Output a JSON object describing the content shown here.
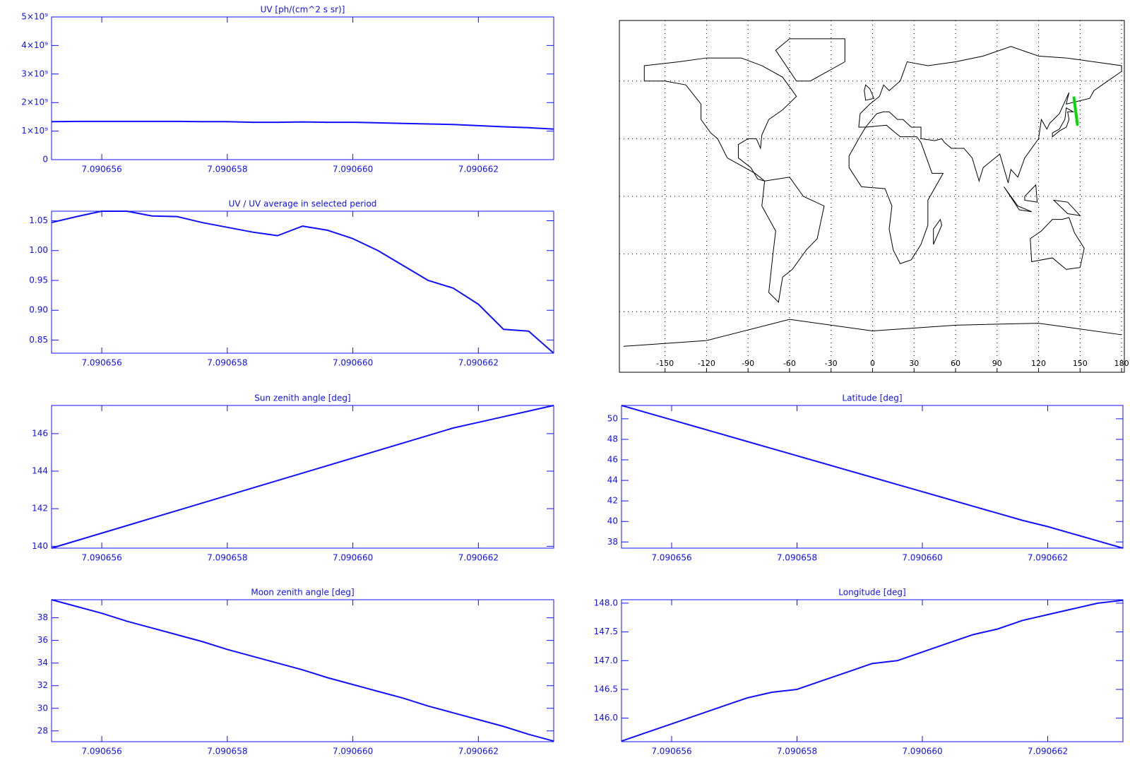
{
  "chart_data": [
    {
      "type": "line",
      "title": "UV [ph/(cm^2 s sr)]",
      "color": "#1010ff",
      "x": [
        7.0906552,
        7.0906556,
        7.090656,
        7.0906564,
        7.0906568,
        7.0906572,
        7.0906576,
        7.090658,
        7.0906584,
        7.0906588,
        7.0906592,
        7.0906596,
        7.09066,
        7.0906604,
        7.0906608,
        7.0906612,
        7.0906616,
        7.090662,
        7.0906624,
        7.0906628,
        7.0906632
      ],
      "values": [
        1330000000,
        1340000000,
        1340000000,
        1340000000,
        1340000000,
        1340000000,
        1330000000,
        1330000000,
        1310000000,
        1310000000,
        1320000000,
        1310000000,
        1310000000,
        1290000000,
        1270000000,
        1250000000,
        1230000000,
        1190000000,
        1150000000,
        1120000000,
        1070000000
      ],
      "xlim": [
        7.0906552,
        7.0906632
      ],
      "ylim": [
        0,
        5000000000
      ],
      "xticks": [
        7.090656,
        7.090658,
        {
          "value": 7.09066,
          "label": "7.090660"
        },
        7.090662
      ],
      "yticks": [
        0,
        {
          "value": 1000000000,
          "label": "1×10⁹"
        },
        {
          "value": 2000000000,
          "label": "2×10⁹"
        },
        {
          "value": 3000000000,
          "label": "3×10⁹"
        },
        {
          "value": 4000000000,
          "label": "4×10⁹"
        },
        {
          "value": 5000000000,
          "label": "5×10⁹"
        }
      ]
    },
    {
      "type": "line",
      "title": "UV / UV average in selected period",
      "color": "#1010ff",
      "x": [
        7.0906552,
        7.0906556,
        7.090656,
        7.0906564,
        7.0906568,
        7.0906572,
        7.0906576,
        7.090658,
        7.0906584,
        7.0906588,
        7.0906592,
        7.0906596,
        7.09066,
        7.0906604,
        7.0906608,
        7.0906612,
        7.0906616,
        7.090662,
        7.0906624,
        7.0906628,
        7.0906632
      ],
      "values": [
        1.047,
        1.057,
        1.066,
        1.066,
        1.058,
        1.057,
        1.047,
        1.039,
        1.031,
        1.025,
        1.041,
        1.034,
        1.02,
        1.0,
        0.975,
        0.95,
        0.937,
        0.91,
        0.868,
        0.865,
        0.828
      ],
      "xlim": [
        7.0906552,
        7.0906632
      ],
      "ylim": [
        0.828,
        1.066
      ],
      "xticks": [
        7.090656,
        7.090658,
        {
          "value": 7.09066,
          "label": "7.090660"
        },
        7.090662
      ],
      "yticks": [
        0.85,
        {
          "value": 0.9,
          "label": "0.90"
        },
        0.95,
        {
          "value": 1,
          "label": "1.00"
        },
        1.05
      ]
    },
    {
      "type": "line",
      "title": "Sun zenith angle [deg]",
      "color": "#1010ff",
      "x": [
        7.0906552,
        7.0906556,
        7.090656,
        7.0906564,
        7.0906568,
        7.0906572,
        7.0906576,
        7.090658,
        7.0906584,
        7.0906588,
        7.0906592,
        7.0906596,
        7.09066,
        7.0906604,
        7.0906608,
        7.0906612,
        7.0906616,
        7.090662,
        7.0906624,
        7.0906628,
        7.0906632
      ],
      "values": [
        139.9,
        140.3,
        140.7,
        141.1,
        141.5,
        141.9,
        142.3,
        142.7,
        143.1,
        143.5,
        143.9,
        144.3,
        144.7,
        145.1,
        145.5,
        145.9,
        146.3,
        146.6,
        146.9,
        147.2,
        147.5
      ],
      "xlim": [
        7.0906552,
        7.0906632
      ],
      "ylim": [
        139.9,
        147.5
      ],
      "xticks": [
        7.090656,
        7.090658,
        {
          "value": 7.09066,
          "label": "7.090660"
        },
        7.090662
      ],
      "yticks": [
        140,
        142,
        144,
        146
      ]
    },
    {
      "type": "line",
      "title": "Latitude [deg]",
      "color": "#1010ff",
      "x": [
        7.0906552,
        7.0906556,
        7.090656,
        7.0906564,
        7.0906568,
        7.0906572,
        7.0906576,
        7.090658,
        7.0906584,
        7.0906588,
        7.0906592,
        7.0906596,
        7.09066,
        7.0906604,
        7.0906608,
        7.0906612,
        7.0906616,
        7.090662,
        7.0906624,
        7.0906628,
        7.0906632
      ],
      "values": [
        51.3,
        50.6,
        49.9,
        49.2,
        48.5,
        47.8,
        47.1,
        46.4,
        45.7,
        45.0,
        44.3,
        43.6,
        42.9,
        42.2,
        41.5,
        40.8,
        40.1,
        39.5,
        38.8,
        38.1,
        37.4
      ],
      "xlim": [
        7.0906552,
        7.0906632
      ],
      "ylim": [
        37.4,
        51.3
      ],
      "xticks": [
        7.090656,
        7.090658,
        {
          "value": 7.09066,
          "label": "7.090660"
        },
        7.090662
      ],
      "yticks": [
        38,
        40,
        42,
        44,
        46,
        48,
        50
      ]
    },
    {
      "type": "line",
      "title": "Moon zenith angle [deg]",
      "color": "#1010ff",
      "x": [
        7.0906552,
        7.0906556,
        7.090656,
        7.0906564,
        7.0906568,
        7.0906572,
        7.0906576,
        7.090658,
        7.0906584,
        7.0906588,
        7.0906592,
        7.0906596,
        7.09066,
        7.0906604,
        7.0906608,
        7.0906612,
        7.0906616,
        7.090662,
        7.0906624,
        7.0906628,
        7.0906632
      ],
      "values": [
        39.6,
        39.0,
        38.4,
        37.7,
        37.1,
        36.5,
        35.9,
        35.2,
        34.6,
        34.0,
        33.4,
        32.7,
        32.1,
        31.5,
        30.9,
        30.2,
        29.6,
        29.0,
        28.4,
        27.7,
        27.1
      ],
      "xlim": [
        7.0906552,
        7.0906632
      ],
      "ylim": [
        27.05,
        39.6
      ],
      "xticks": [
        7.090656,
        7.090658,
        {
          "value": 7.09066,
          "label": "7.090660"
        },
        7.090662
      ],
      "yticks": [
        28,
        30,
        32,
        34,
        36,
        38
      ]
    },
    {
      "type": "line",
      "title": "Longitude [deg]",
      "color": "#1010ff",
      "x": [
        7.0906552,
        7.0906556,
        7.090656,
        7.0906564,
        7.0906568,
        7.0906572,
        7.0906576,
        7.090658,
        7.0906584,
        7.0906588,
        7.0906592,
        7.0906596,
        7.09066,
        7.0906604,
        7.0906608,
        7.0906612,
        7.0906616,
        7.090662,
        7.0906624,
        7.0906628,
        7.0906632
      ],
      "values": [
        145.6,
        145.75,
        145.9,
        146.05,
        146.2,
        146.35,
        146.45,
        146.5,
        146.65,
        146.8,
        146.95,
        147.0,
        147.15,
        147.3,
        147.45,
        147.55,
        147.7,
        147.8,
        147.9,
        148.0,
        148.05
      ],
      "xlim": [
        7.0906552,
        7.0906632
      ],
      "ylim": [
        145.59,
        148.06
      ],
      "xticks": [
        7.090656,
        7.090658,
        {
          "value": 7.09066,
          "label": "7.090660"
        },
        7.090662
      ],
      "yticks": [
        {
          "value": 146,
          "label": "146.0"
        },
        146.5,
        {
          "value": 147,
          "label": "147.0"
        },
        147.5,
        {
          "value": 148,
          "label": "148.0"
        }
      ]
    },
    {
      "type": "map",
      "xlim": [
        -183,
        182
      ],
      "ylim": [
        -91.5,
        91.5
      ],
      "xticks": [
        -150,
        -120,
        -90,
        -60,
        -30,
        0,
        30,
        60,
        90,
        120,
        150,
        180
      ],
      "ygrid": [
        -60,
        -30,
        0,
        30,
        60
      ],
      "track": {
        "color": "#00dd00",
        "x": [
          145.6,
          148.05
        ],
        "y": [
          51.3,
          37.4
        ]
      }
    }
  ]
}
